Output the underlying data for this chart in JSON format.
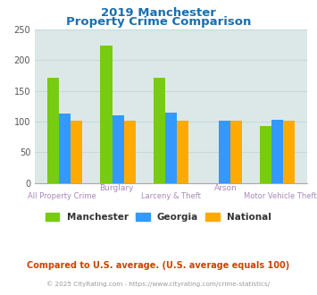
{
  "title_line1": "2019 Manchester",
  "title_line2": "Property Crime Comparison",
  "title_color": "#1a6faf",
  "categories": [
    "All Property Crime",
    "Burglary",
    "Larceny & Theft",
    "Arson",
    "Motor Vehicle Theft"
  ],
  "top_labels": [
    "",
    "Burglary",
    "",
    "Arson",
    ""
  ],
  "bottom_labels": [
    "All Property Crime",
    "",
    "Larceny & Theft",
    "",
    "Motor Vehicle Theft"
  ],
  "manchester_values": [
    172,
    224,
    172,
    0,
    92
  ],
  "georgia_values": [
    113,
    110,
    115,
    101,
    103
  ],
  "national_values": [
    101,
    101,
    101,
    101,
    101
  ],
  "manchester_color": "#77cc11",
  "georgia_color": "#3399ff",
  "national_color": "#ffaa00",
  "bar_width": 0.22,
  "ylim": [
    0,
    250
  ],
  "yticks": [
    0,
    50,
    100,
    150,
    200,
    250
  ],
  "grid_color": "#c8d8d8",
  "plot_bg_color": "#dce8e8",
  "legend_labels": [
    "Manchester",
    "Georgia",
    "National"
  ],
  "footnote1": "Compared to U.S. average. (U.S. average equals 100)",
  "footnote2": "© 2025 CityRating.com - https://www.cityrating.com/crime-statistics/",
  "footnote1_color": "#cc4400",
  "footnote2_color": "#999999",
  "label_color": "#aa88bb",
  "top_label_color": "#aa88bb"
}
